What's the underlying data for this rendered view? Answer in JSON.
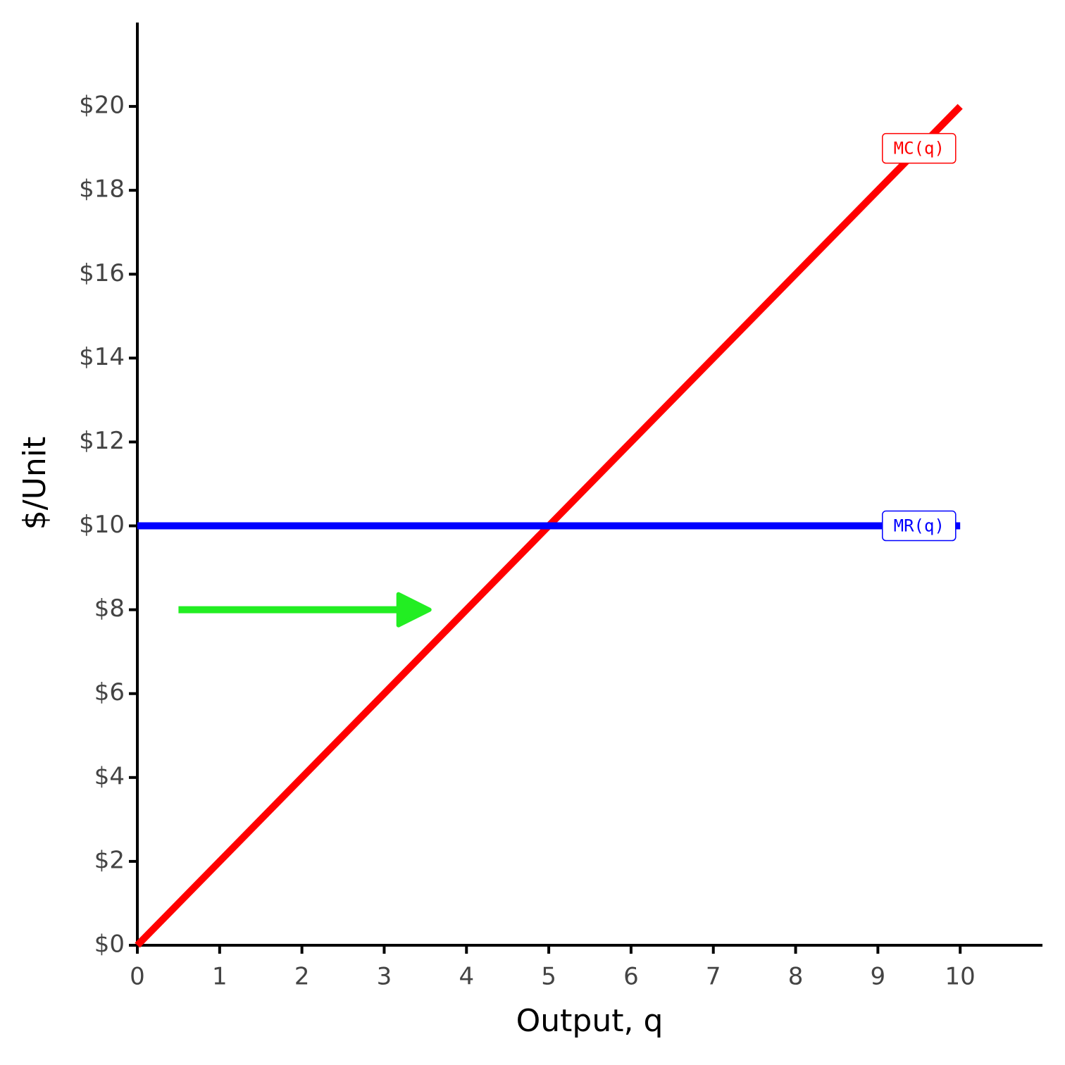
{
  "chart_data": {
    "type": "line",
    "x_label": "Output, q",
    "y_label": "$/Unit",
    "xlim": [
      0,
      11
    ],
    "ylim": [
      0,
      22
    ],
    "xticks": [
      0,
      1,
      2,
      3,
      4,
      5,
      6,
      7,
      8,
      9,
      10
    ],
    "yticks": [
      {
        "value": 0,
        "label": "$0"
      },
      {
        "value": 2,
        "label": "$2"
      },
      {
        "value": 4,
        "label": "$4"
      },
      {
        "value": 6,
        "label": "$6"
      },
      {
        "value": 8,
        "label": "$8"
      },
      {
        "value": 10,
        "label": "$10"
      },
      {
        "value": 12,
        "label": "$12"
      },
      {
        "value": 14,
        "label": "$14"
      },
      {
        "value": 16,
        "label": "$16"
      },
      {
        "value": 18,
        "label": "$18"
      },
      {
        "value": 20,
        "label": "$20"
      }
    ],
    "series": [
      {
        "name": "MC(q)",
        "color": "#ff0000",
        "x": [
          0,
          10
        ],
        "values": [
          0,
          20
        ]
      },
      {
        "name": "MR(q)",
        "color": "#0000ff",
        "x": [
          0,
          10
        ],
        "values": [
          10,
          10
        ]
      }
    ],
    "annotations": [
      {
        "type": "arrow",
        "color": "#22ee22",
        "x": [
          0.5,
          3.55
        ],
        "y": [
          8,
          8
        ]
      }
    ]
  }
}
